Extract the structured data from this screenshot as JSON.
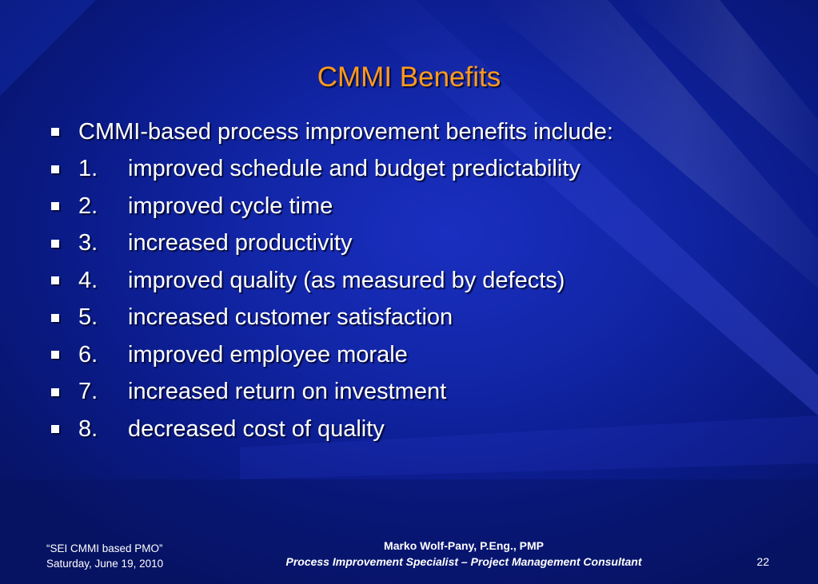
{
  "slide": {
    "title": "CMMI Benefits",
    "bullets": [
      {
        "num": "",
        "text": "CMMI-based process improvement benefits include:"
      },
      {
        "num": "1.",
        "text": "improved schedule and budget predictability"
      },
      {
        "num": "2.",
        "text": "improved cycle time"
      },
      {
        "num": "3.",
        "text": "increased productivity"
      },
      {
        "num": "4.",
        "text": "improved quality (as measured by defects)"
      },
      {
        "num": "5.",
        "text": "increased customer satisfaction"
      },
      {
        "num": "6.",
        "text": "improved employee morale"
      },
      {
        "num": "7.",
        "text": "increased return on investment"
      },
      {
        "num": "8.",
        "text": "decreased cost of quality"
      }
    ]
  },
  "footer": {
    "presentation": "“SEI CMMI based PMO”",
    "date": "Saturday, June 19, 2010",
    "author": "Marko Wolf-Pany, P.Eng., PMP",
    "role": "Process Improvement Specialist – Project Management Consultant",
    "page_number": "22"
  },
  "colors": {
    "background": "#0b1a85",
    "title": "#ff9a1e",
    "text": "#ffffff"
  }
}
